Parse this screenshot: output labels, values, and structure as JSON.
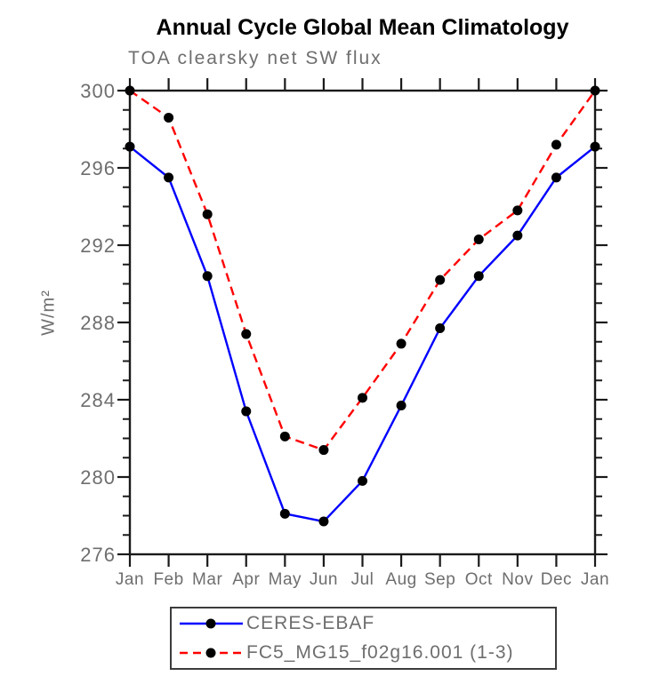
{
  "title": "Annual Cycle Global Mean Climatology",
  "subtitle": "TOA clearsky net SW flux",
  "ylabel": "W/m²",
  "chart_data": {
    "type": "line",
    "categories": [
      "Jan",
      "Feb",
      "Mar",
      "Apr",
      "May",
      "Jun",
      "Jul",
      "Aug",
      "Sep",
      "Oct",
      "Nov",
      "Dec",
      "Jan"
    ],
    "series": [
      {
        "name": "CERES-EBAF",
        "color": "#0000ff",
        "line_style": "solid",
        "marker": "filled-circle",
        "marker_color": "#000000",
        "values": [
          297.1,
          295.5,
          290.4,
          283.4,
          278.1,
          277.7,
          279.8,
          283.7,
          287.7,
          290.4,
          292.5,
          295.5,
          297.1
        ]
      },
      {
        "name": "FC5_MG15_f02g16.001 (1-3)",
        "color": "#ff0000",
        "line_style": "dashed",
        "marker": "filled-circle",
        "marker_color": "#000000",
        "values": [
          300.0,
          298.6,
          293.6,
          287.4,
          282.1,
          281.4,
          284.1,
          286.9,
          290.2,
          292.3,
          293.8,
          297.2,
          300.0
        ]
      }
    ],
    "ylim": [
      276,
      300
    ],
    "yticks": [
      276,
      280,
      284,
      288,
      292,
      296,
      300
    ],
    "minor_tick_interval": 1,
    "grid": false,
    "tick_direction": "out",
    "legend_position": "bottom"
  },
  "colors": {
    "axis": "#1a1a1a",
    "tick_label": "#6e6e6e",
    "title": "#000000",
    "subtitle": "#6e6e6e",
    "legend_border": "#3c3c3c"
  }
}
